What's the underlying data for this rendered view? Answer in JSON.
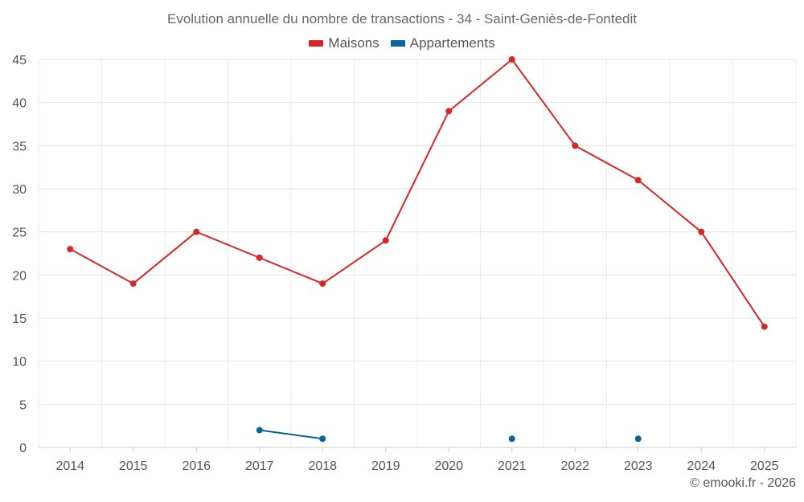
{
  "chart_data": {
    "type": "line",
    "title": "Evolution annuelle du nombre de transactions - 34 - Saint-Geniès-de-Fontedit",
    "categories": [
      "2014",
      "2015",
      "2016",
      "2017",
      "2018",
      "2019",
      "2020",
      "2021",
      "2022",
      "2023",
      "2024",
      "2025"
    ],
    "series": [
      {
        "name": "Maisons",
        "color": "#d62728",
        "values": [
          23,
          19,
          25,
          22,
          19,
          24,
          39,
          45,
          35,
          31,
          25,
          14
        ]
      },
      {
        "name": "Appartements",
        "color": "#0b6294",
        "values": [
          null,
          null,
          null,
          2,
          1,
          null,
          null,
          1,
          null,
          1,
          null,
          null
        ]
      }
    ],
    "yticks": [
      "0",
      "5",
      "10",
      "15",
      "20",
      "25",
      "30",
      "35",
      "40",
      "45"
    ],
    "ylim": [
      0,
      45
    ],
    "grid": true,
    "legend_position": "top-center"
  },
  "footer": {
    "credit": "© emooki.fr - 2026"
  }
}
